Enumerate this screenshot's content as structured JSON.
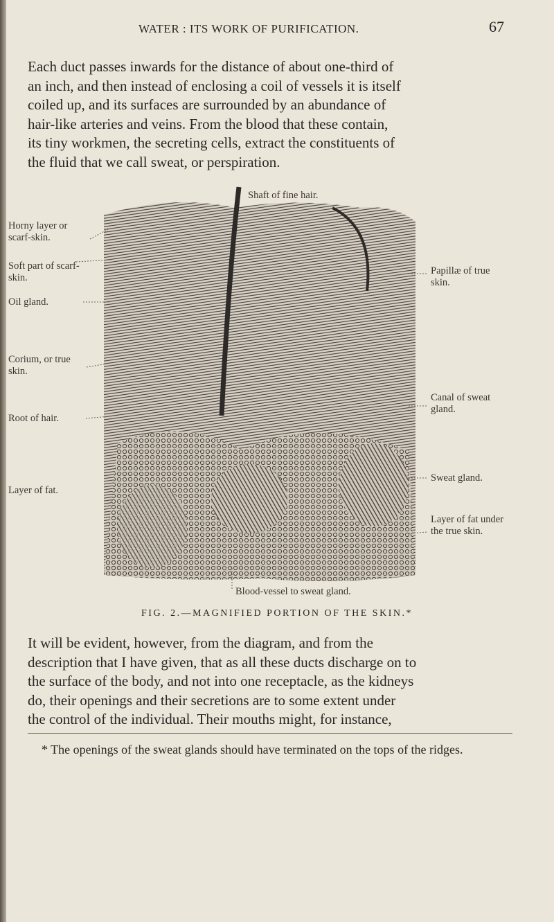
{
  "header": {
    "title": "WATER : ITS WORK OF PURIFICATION.",
    "page_number": "67"
  },
  "paragraph_1": [
    "Each duct passes inwards for the distance of about one-third of",
    "an inch, and then instead of enclosing a coil of vessels it is itself",
    "coiled up, and its surfaces are surrounded by an abundance of",
    "hair-like arteries and veins. From the blood that these contain,",
    "its tiny workmen, the secreting cells, extract the constituents of",
    "the fluid that we call sweat, or perspiration."
  ],
  "figure": {
    "top_label": "Shaft of fine hair.",
    "left_labels": [
      "Horny layer or scarf-skin.",
      "Soft part of scarf-skin.",
      "Oil gland.",
      "Corium, or true skin.",
      "Root of hair.",
      "Layer of fat."
    ],
    "right_labels": [
      "Papillæ of true skin.",
      "Canal of sweat gland.",
      "Sweat gland.",
      "Layer of fat under the true skin."
    ],
    "bottom_label": "Blood-vessel to sweat gland.",
    "caption": "FIG. 2.—MAGNIFIED PORTION OF THE SKIN.*"
  },
  "paragraph_2": [
    "It will be evident, however, from the diagram, and from the",
    "description that I have given, that as all these ducts discharge on to",
    "the surface of the body, and not into one receptacle, as the kidneys",
    "do, their openings and their secretions are to some extent under",
    "the control of the individual. Their mouths might, for instance,"
  ],
  "footnote": "* The openings of the sweat glands should have terminated on the tops of the ridges."
}
